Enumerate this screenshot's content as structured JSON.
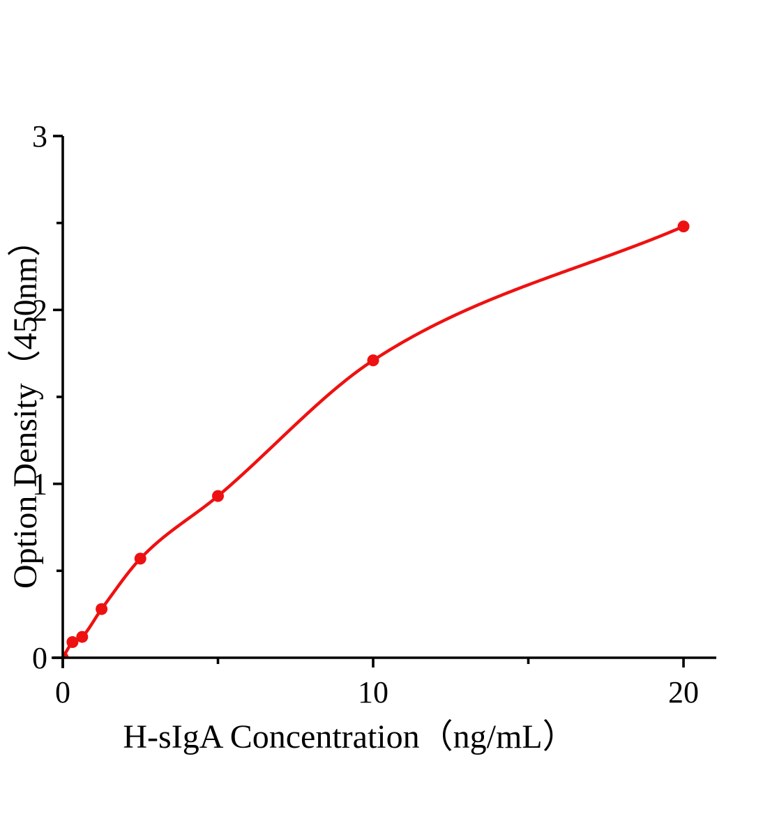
{
  "figure": {
    "background": "#ffffff",
    "title": ""
  },
  "chart_data": {
    "type": "scatter",
    "fit_curve": true,
    "title": "",
    "xlabel": "H-sIgA Concentration（ng/mL）",
    "ylabel": "Option Density（450nm）",
    "points": [
      {
        "x": 0,
        "y": 0
      },
      {
        "x": 0.3125,
        "y": 0.09
      },
      {
        "x": 0.625,
        "y": 0.12
      },
      {
        "x": 1.25,
        "y": 0.28
      },
      {
        "x": 2.5,
        "y": 0.57
      },
      {
        "x": 5,
        "y": 0.93
      },
      {
        "x": 10,
        "y": 1.71
      },
      {
        "x": 20,
        "y": 2.48
      }
    ],
    "xlim": [
      0,
      21.1
    ],
    "ylim": [
      0,
      3
    ],
    "x_major_ticks": [
      0,
      10,
      20
    ],
    "x_minor_ticks": [
      5,
      15
    ],
    "y_major_ticks": [
      0,
      1,
      2,
      3
    ],
    "y_minor_ticks": [
      0.5,
      1.5,
      2.5
    ],
    "grid": false,
    "legend": "none",
    "marker_color": "#ee1111",
    "line_color": "#ee1111",
    "axis_color": "#000000"
  }
}
